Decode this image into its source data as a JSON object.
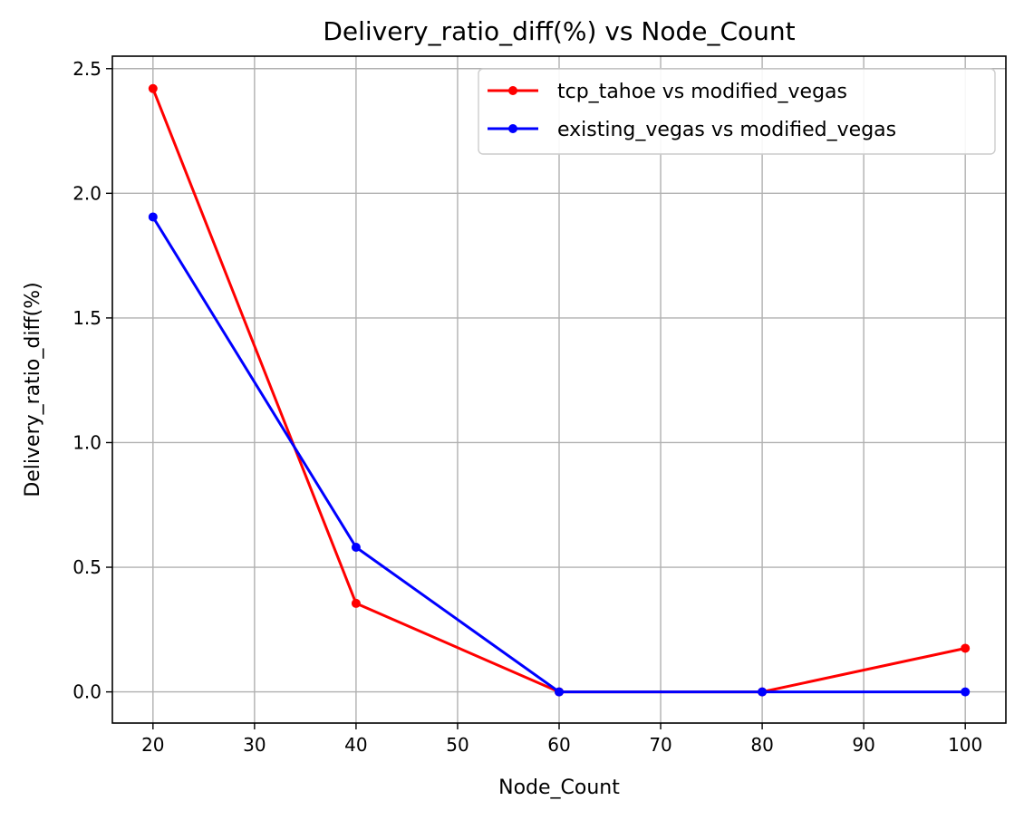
{
  "chart_data": {
    "type": "line",
    "title": "Delivery_ratio_diff(%) vs Node_Count",
    "xlabel": "Node_Count",
    "ylabel": "Delivery_ratio_diff(%)",
    "x": [
      20,
      40,
      60,
      80,
      100
    ],
    "xticks": [
      "20",
      "30",
      "40",
      "50",
      "60",
      "70",
      "80",
      "90",
      "100"
    ],
    "yticks": [
      "0.0",
      "0.5",
      "1.0",
      "1.5",
      "2.0",
      "2.5"
    ],
    "xlim": [
      16,
      104
    ],
    "ylim": [
      -0.125,
      2.55
    ],
    "grid": true,
    "legend_position": "top-right",
    "series": [
      {
        "name": "tcp_tahoe vs modified_vegas",
        "color": "#ff0000",
        "values": [
          2.42,
          0.355,
          0.0,
          0.0,
          0.175
        ]
      },
      {
        "name": "existing_vegas vs modified_vegas",
        "color": "#0000ff",
        "values": [
          1.905,
          0.58,
          0.0,
          0.0,
          0.0
        ]
      }
    ]
  }
}
